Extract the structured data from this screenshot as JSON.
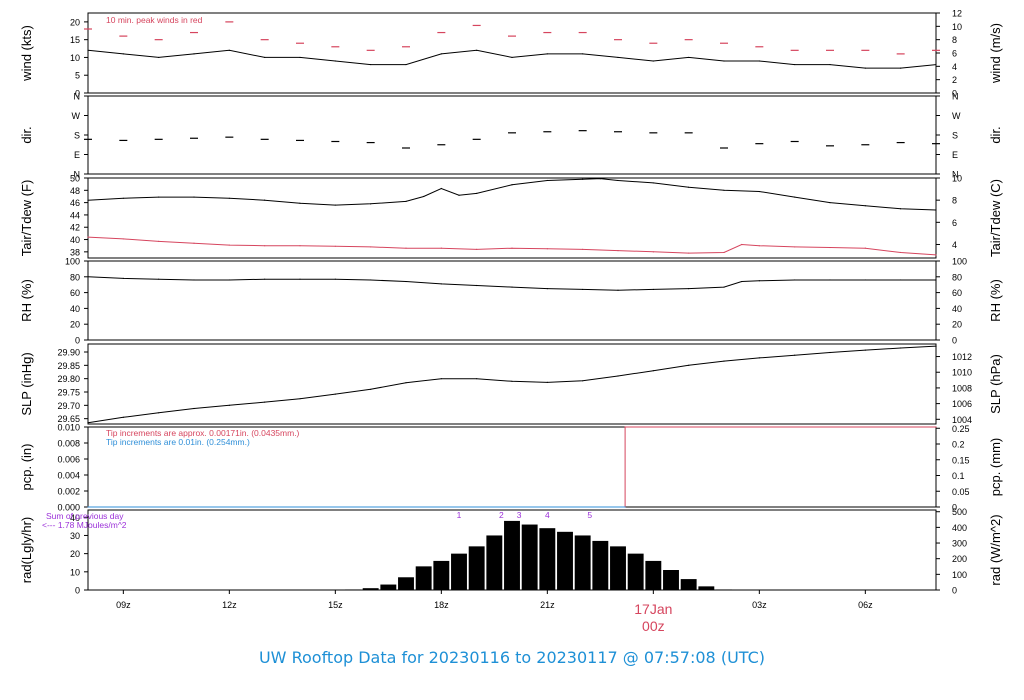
{
  "colors": {
    "accent": "#d6455e",
    "title": "#1e90d6",
    "purple": "#9b30d9",
    "blue": "#2f8fd8",
    "line": "#000000",
    "frame": "#000000"
  },
  "footer": {
    "title": "UW Rooftop Data for 20230116  to  20230117 @ 07:57:08  (UTC)"
  },
  "chart_data": {
    "type": "line",
    "x_axis": {
      "ticks": [
        "09z",
        "12z",
        "15z",
        "18z",
        "21z",
        "00z",
        "03z",
        "06z"
      ],
      "tick_hours": [
        9,
        12,
        15,
        18,
        21,
        24,
        27,
        30
      ],
      "range_hours": [
        8.0,
        32.0
      ],
      "date_label": "17Jan",
      "date_hour": 24,
      "date_sub": "00z"
    },
    "panels": [
      {
        "id": "wind",
        "left_label": "wind (kts)",
        "right_label": "wind (m/s)",
        "left_ticks": [
          "0",
          "5",
          "10",
          "15",
          "20"
        ],
        "left_range": [
          0,
          22.5
        ],
        "right_ticks": [
          "0",
          "2",
          "4",
          "6",
          "8",
          "10",
          "12"
        ],
        "right_tick_values": [
          0,
          2,
          4,
          6,
          8,
          10,
          12
        ],
        "right_range": [
          0,
          12.0
        ],
        "annotation": "10 min. peak winds in red",
        "series": [
          {
            "style": "line",
            "color": "#000000",
            "x": [
              8,
              9,
              10,
              11,
              12,
              13,
              14,
              15,
              16,
              17,
              18,
              19,
              20,
              21,
              22,
              23,
              24,
              25,
              26,
              27,
              28,
              29,
              30,
              31,
              32
            ],
            "y": [
              12,
              11,
              10,
              11,
              12,
              10,
              10,
              9,
              8,
              8,
              11,
              12,
              10,
              11,
              11,
              10,
              9,
              10,
              9,
              9,
              8,
              8,
              7,
              7,
              8
            ]
          },
          {
            "style": "dash",
            "color": "#d6455e",
            "x": [
              8,
              9,
              10,
              11,
              12,
              13,
              14,
              15,
              16,
              17,
              18,
              19,
              20,
              21,
              22,
              23,
              24,
              25,
              26,
              27,
              28,
              29,
              30,
              31,
              32
            ],
            "y": [
              18,
              16,
              15,
              17,
              20,
              15,
              14,
              13,
              12,
              13,
              17,
              19,
              16,
              17,
              17,
              15,
              14,
              15,
              14,
              13,
              12,
              12,
              12,
              11,
              12
            ]
          }
        ]
      },
      {
        "id": "dir",
        "left_label": "dir.",
        "right_label": "dir.",
        "left_ticks": [
          "N",
          "E",
          "S",
          "W",
          "N"
        ],
        "left_tick_values": [
          0,
          90,
          180,
          270,
          360
        ],
        "left_range": [
          0,
          360
        ],
        "right_ticks": [
          "N",
          "E",
          "S",
          "W",
          "N"
        ],
        "right_tick_values": [
          0,
          90,
          180,
          270,
          360
        ],
        "right_range": [
          0,
          360
        ],
        "series": [
          {
            "style": "dash",
            "color": "#000000",
            "x": [
              8,
              9,
              10,
              11,
              12,
              13,
              14,
              15,
              16,
              17,
              18,
              19,
              20,
              21,
              22,
              23,
              24,
              25,
              26,
              27,
              28,
              29,
              30,
              31,
              32
            ],
            "y": [
              160,
              155,
              160,
              165,
              170,
              160,
              155,
              150,
              145,
              120,
              135,
              160,
              190,
              195,
              200,
              195,
              190,
              190,
              120,
              140,
              150,
              130,
              135,
              145,
              140
            ]
          }
        ]
      },
      {
        "id": "temp",
        "left_label": "Tair/Tdew (F)",
        "right_label": "Tair/Tdew (C)",
        "left_ticks": [
          "38",
          "40",
          "42",
          "44",
          "46",
          "48",
          "50"
        ],
        "left_tick_values": [
          38,
          40,
          42,
          44,
          46,
          48,
          50
        ],
        "left_range": [
          37,
          50
        ],
        "right_ticks": [
          "4",
          "6",
          "8",
          "10"
        ],
        "right_tick_values": [
          4,
          6,
          8,
          10
        ],
        "right_range": [
          2.78,
          10.0
        ],
        "series": [
          {
            "style": "line",
            "color": "#000000",
            "x": [
              8,
              9,
              10,
              11,
              12,
              13,
              14,
              15,
              16,
              17,
              17.5,
              18,
              18.5,
              19,
              20,
              21,
              22,
              22.5,
              23,
              24,
              25,
              26,
              27,
              28,
              29,
              30,
              31,
              32
            ],
            "y": [
              46.4,
              46.7,
              46.9,
              46.9,
              46.7,
              46.4,
              45.9,
              45.6,
              45.8,
              46.2,
              47.0,
              48.3,
              47.2,
              47.5,
              48.9,
              49.6,
              49.8,
              49.9,
              49.6,
              49.2,
              48.5,
              48.0,
              47.8,
              46.9,
              46.0,
              45.5,
              45.0,
              44.8
            ]
          },
          {
            "style": "line",
            "color": "#d6455e",
            "x": [
              8,
              9,
              10,
              11,
              12,
              13,
              14,
              15,
              16,
              17,
              18,
              19,
              20,
              21,
              22,
              23,
              24,
              25,
              26,
              26.5,
              27,
              28,
              29,
              30,
              31,
              32
            ],
            "y": [
              40.4,
              40.1,
              39.7,
              39.4,
              39.1,
              39.0,
              39.0,
              38.9,
              38.8,
              38.6,
              38.6,
              38.4,
              38.6,
              38.5,
              38.4,
              38.2,
              38.0,
              37.8,
              37.9,
              39.2,
              39.0,
              38.8,
              38.7,
              38.6,
              37.9,
              37.5
            ]
          }
        ]
      },
      {
        "id": "rh",
        "left_label": "RH (%)",
        "right_label": "RH (%)",
        "left_ticks": [
          "0",
          "20",
          "40",
          "60",
          "80",
          "100"
        ],
        "left_tick_values": [
          0,
          20,
          40,
          60,
          80,
          100
        ],
        "left_range": [
          0,
          100
        ],
        "right_ticks": [
          "0",
          "20",
          "40",
          "60",
          "80",
          "100"
        ],
        "right_tick_values": [
          0,
          20,
          40,
          60,
          80,
          100
        ],
        "right_range": [
          0,
          100
        ],
        "series": [
          {
            "style": "line",
            "color": "#000000",
            "x": [
              8,
              9,
              10,
              11,
              12,
              13,
              14,
              15,
              16,
              17,
              18,
              19,
              20,
              21,
              22,
              23,
              24,
              25,
              26,
              26.5,
              27,
              28,
              29,
              30,
              31,
              32
            ],
            "y": [
              80,
              78,
              77,
              76,
              76,
              77,
              77,
              77,
              76,
              74,
              71,
              69,
              67,
              65,
              64,
              63,
              64,
              65,
              67,
              74,
              75,
              76,
              76,
              76,
              76,
              76
            ]
          }
        ]
      },
      {
        "id": "slp",
        "left_label": "SLP (inHg)",
        "right_label": "SLP (hPa)",
        "left_ticks": [
          "29.65",
          "29.70",
          "29.75",
          "29.80",
          "29.85",
          "29.90"
        ],
        "left_tick_values": [
          29.65,
          29.7,
          29.75,
          29.8,
          29.85,
          29.9
        ],
        "left_range": [
          29.63,
          29.93
        ],
        "right_ticks": [
          "1004",
          "1006",
          "1008",
          "1010",
          "1012"
        ],
        "right_tick_values": [
          1004,
          1006,
          1008,
          1010,
          1012
        ],
        "right_range": [
          1003.4,
          1013.6
        ],
        "series": [
          {
            "style": "line",
            "color": "#000000",
            "x": [
              8,
              9,
              10,
              11,
              12,
              13,
              14,
              15,
              16,
              17,
              18,
              19,
              20,
              21,
              22,
              23,
              24,
              25,
              26,
              27,
              28,
              29,
              30,
              31,
              32
            ],
            "y": [
              29.635,
              29.655,
              29.672,
              29.688,
              29.7,
              29.712,
              29.725,
              29.742,
              29.76,
              29.785,
              29.8,
              29.8,
              29.79,
              29.786,
              29.792,
              29.81,
              29.83,
              29.85,
              29.866,
              29.878,
              29.888,
              29.898,
              29.907,
              29.915,
              29.922
            ]
          }
        ]
      },
      {
        "id": "pcp",
        "left_label": "pcp. (in)",
        "right_label": "pcp. (mm)",
        "left_ticks": [
          "0.000",
          "0.002",
          "0.004",
          "0.006",
          "0.008",
          "0.010"
        ],
        "left_tick_values": [
          0,
          0.002,
          0.004,
          0.006,
          0.008,
          0.01
        ],
        "left_range": [
          0,
          0.01
        ],
        "right_ticks": [
          "0",
          "0.05",
          "0.1",
          "0.15",
          "0.2",
          "0.25"
        ],
        "right_tick_values": [
          0,
          0.05,
          0.1,
          0.15,
          0.2,
          0.25
        ],
        "right_range": [
          0,
          0.254
        ],
        "annotations": [
          {
            "text": "Tip increments are approx. 0.00171in. (0.0435mm.)",
            "color": "#d6455e"
          },
          {
            "text": "Tip increments are 0.01in. (0.254mm.)",
            "color": "#2f8fd8"
          }
        ],
        "series": [
          {
            "style": "step",
            "color": "#d6455e",
            "x": [
              8,
              23.2,
              23.2,
              32
            ],
            "y": [
              0,
              0,
              0.01,
              0.01
            ]
          },
          {
            "style": "line",
            "color": "#2f8fd8",
            "x": [
              8,
              23.2
            ],
            "y": [
              0,
              0
            ]
          }
        ]
      },
      {
        "id": "rad",
        "left_label": "rad(Lgly/hr)",
        "right_label": "rad (W/m^2)",
        "left_ticks": [
          "0",
          "10",
          "20",
          "30",
          "40"
        ],
        "left_tick_values": [
          0,
          10,
          20,
          30,
          40
        ],
        "left_range": [
          0,
          44
        ],
        "right_ticks": [
          "0",
          "100",
          "200",
          "300",
          "400",
          "500"
        ],
        "right_tick_values": [
          0,
          100,
          200,
          300,
          400,
          500
        ],
        "right_range": [
          0,
          511
        ],
        "annotations": [
          {
            "text": "Sum of previous day",
            "color": "#9b30d9"
          },
          {
            "text": "<--- 1.78 MJoules/m^2",
            "color": "#9b30d9"
          }
        ],
        "markers": {
          "labels": [
            "1",
            "2",
            "3",
            "4",
            "5"
          ],
          "x": [
            18.5,
            19.7,
            20.2,
            21.0,
            22.2
          ]
        },
        "series": [
          {
            "style": "bars",
            "color": "#000000",
            "x": [
              15.5,
              16,
              16.5,
              17,
              17.5,
              18,
              18.5,
              19,
              19.5,
              20,
              20.5,
              21,
              21.5,
              22,
              22.5,
              23,
              23.5,
              24,
              24.5,
              25,
              25.5,
              26
            ],
            "y": [
              0.3,
              1,
              3,
              7,
              13,
              16,
              20,
              24,
              30,
              38,
              36,
              34,
              32,
              30,
              27,
              24,
              20,
              16,
              11,
              6,
              2,
              0.3
            ]
          }
        ]
      }
    ]
  }
}
